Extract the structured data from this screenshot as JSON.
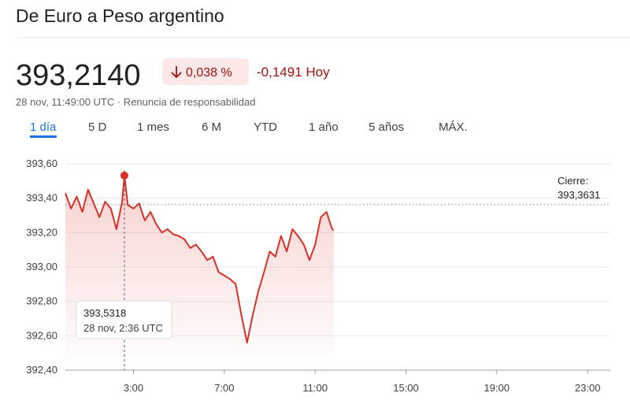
{
  "header": {
    "title": "De Euro a Peso argentino",
    "price": "393,2140",
    "change_percent": "0,038 %",
    "change_abs": "-0,1491 Hoy",
    "timestamp": "28 nov, 11:49:00 UTC · Renuncia de responsabilidad"
  },
  "tabs": [
    "1 día",
    "5 D",
    "1 mes",
    "6 M",
    "YTD",
    "1 año",
    "5 años",
    "MÁX."
  ],
  "chart_data": {
    "type": "line",
    "color": "#d93025",
    "x": [
      0,
      0.25,
      0.5,
      0.75,
      1,
      1.25,
      1.5,
      1.75,
      2,
      2.25,
      2.5,
      2.6,
      2.75,
      3,
      3.25,
      3.5,
      3.75,
      4,
      4.25,
      4.5,
      4.75,
      5,
      5.25,
      5.5,
      5.75,
      6,
      6.25,
      6.5,
      6.75,
      7,
      7.25,
      7.5,
      7.75,
      8,
      8.25,
      8.5,
      8.75,
      9,
      9.25,
      9.5,
      9.75,
      10,
      10.25,
      10.5,
      10.75,
      11,
      11.25,
      11.5,
      11.75,
      11.82
    ],
    "values": [
      393.43,
      393.34,
      393.41,
      393.32,
      393.45,
      393.37,
      393.29,
      393.38,
      393.34,
      393.22,
      393.38,
      393.5318,
      393.36,
      393.34,
      393.37,
      393.27,
      393.32,
      393.25,
      393.2,
      393.22,
      393.19,
      393.18,
      393.16,
      393.11,
      393.13,
      393.09,
      393.04,
      393.06,
      392.97,
      392.95,
      392.93,
      392.9,
      392.72,
      392.56,
      392.72,
      392.86,
      392.97,
      393.09,
      393.06,
      393.18,
      393.09,
      393.22,
      393.18,
      393.13,
      393.04,
      393.13,
      393.29,
      393.32,
      393.22,
      393.214
    ],
    "xlim": [
      0,
      24
    ],
    "xticks": [
      {
        "value": 3,
        "label": "3:00"
      },
      {
        "value": 7,
        "label": "7:00"
      },
      {
        "value": 11,
        "label": "11:00"
      },
      {
        "value": 15,
        "label": "15:00"
      },
      {
        "value": 19,
        "label": "19:00"
      },
      {
        "value": 23,
        "label": "23:00"
      }
    ],
    "ylim": [
      392.4,
      393.6
    ],
    "yticks": [
      {
        "value": 392.4,
        "label": "392,40"
      },
      {
        "value": 392.6,
        "label": "392,60"
      },
      {
        "value": 392.8,
        "label": "392,80"
      },
      {
        "value": 393.0,
        "label": "393,00"
      },
      {
        "value": 393.2,
        "label": "393,20"
      },
      {
        "value": 393.4,
        "label": "393,40"
      },
      {
        "value": 393.6,
        "label": "393,60"
      }
    ],
    "grid": true,
    "close": {
      "label": "Cierre:",
      "value": 393.3631,
      "value_label": "393,3631"
    },
    "tooltip": {
      "x": 2.6,
      "value": 393.5318,
      "value_label": "393,5318",
      "time_label": "28 nov, 2:36 UTC"
    }
  }
}
